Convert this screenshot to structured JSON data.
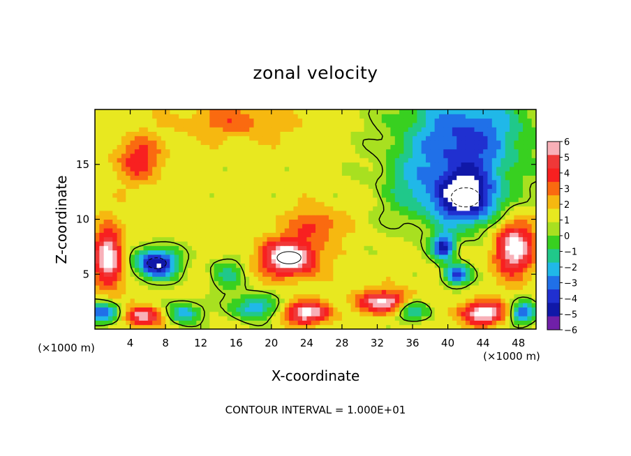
{
  "chart_data": {
    "type": "heatmap",
    "title": "zonal velocity",
    "xlabel": "X-coordinate",
    "ylabel": "Z-coordinate",
    "x_unit_left": "(×1000 m)",
    "x_unit_right": "(×1000 m)",
    "xlim": [
      0,
      50
    ],
    "ylim": [
      0,
      20
    ],
    "x_ticks": [
      4,
      8,
      12,
      16,
      20,
      24,
      28,
      32,
      36,
      40,
      44,
      48
    ],
    "y_ticks": [
      5,
      10,
      15
    ],
    "colorbar": {
      "min": -6,
      "max": 6,
      "labels": [
        "6",
        "5",
        "4",
        "3",
        "2",
        "1",
        "0",
        "−1",
        "−2",
        "−3",
        "−4",
        "−5",
        "−6"
      ],
      "colors": [
        "#f8b0b8",
        "#f03838",
        "#f82020",
        "#fa6a10",
        "#f6b810",
        "#e8e820",
        "#a8e020",
        "#38d020",
        "#20c88a",
        "#20b8e8",
        "#2070e8",
        "#2030d0",
        "#1018a8",
        "#7020a8"
      ]
    },
    "contour_interval_text": "CONTOUR INTERVAL = 1.000E+01",
    "features": [
      {
        "x": 22,
        "z": 6.5,
        "value": 7,
        "sx": 3.0,
        "sz": 1.6
      },
      {
        "x": 1.5,
        "z": 6.5,
        "value": 6,
        "sx": 1.6,
        "sz": 2.6
      },
      {
        "x": 7,
        "z": 6,
        "value": -7,
        "sx": 2.4,
        "sz": 1.4
      },
      {
        "x": 42,
        "z": 12,
        "value": -7,
        "sx": 3.6,
        "sz": 2.5
      },
      {
        "x": 47.5,
        "z": 7.5,
        "value": 6,
        "sx": 2.2,
        "sz": 2.4
      },
      {
        "x": 39.5,
        "z": 7.5,
        "value": -6,
        "sx": 1.3,
        "sz": 1.2
      },
      {
        "x": 41,
        "z": 5,
        "value": -5.5,
        "sx": 1.5,
        "sz": 1.0
      },
      {
        "x": 5,
        "z": 15.5,
        "value": 3,
        "sx": 2.5,
        "sz": 2.0
      },
      {
        "x": 42,
        "z": 17,
        "value": -3.5,
        "sx": 6,
        "sz": 3.5
      },
      {
        "x": 36,
        "z": 13,
        "value": -2,
        "sx": 3.5,
        "sz": 3.5
      },
      {
        "x": 16,
        "z": 19,
        "value": 2,
        "sx": 6,
        "sz": 1.5
      },
      {
        "x": 33,
        "z": 2.5,
        "value": 5.5,
        "sx": 3,
        "sz": 1.0
      },
      {
        "x": 44,
        "z": 1.5,
        "value": 6,
        "sx": 2.5,
        "sz": 1.0
      },
      {
        "x": 24,
        "z": 1.5,
        "value": 5.5,
        "sx": 2.5,
        "sz": 1.0
      },
      {
        "x": 5.5,
        "z": 1.2,
        "value": 5,
        "sx": 2.2,
        "sz": 0.9
      },
      {
        "x": 1,
        "z": 1.5,
        "value": -5,
        "sx": 2,
        "sz": 1.0
      },
      {
        "x": 10,
        "z": 1.5,
        "value": -4,
        "sx": 2,
        "sz": 1.0
      },
      {
        "x": 18,
        "z": 2,
        "value": -4,
        "sx": 2.5,
        "sz": 1.2
      },
      {
        "x": 36,
        "z": 1.8,
        "value": -4,
        "sx": 2,
        "sz": 1.0
      },
      {
        "x": 48.5,
        "z": 1.5,
        "value": -5,
        "sx": 1.5,
        "sz": 1.0
      },
      {
        "x": 15,
        "z": 5,
        "value": -2.5,
        "sx": 2,
        "sz": 1.5
      },
      {
        "x": 25,
        "z": 9.5,
        "value": 2.5,
        "sx": 3,
        "sz": 1.5
      }
    ]
  }
}
